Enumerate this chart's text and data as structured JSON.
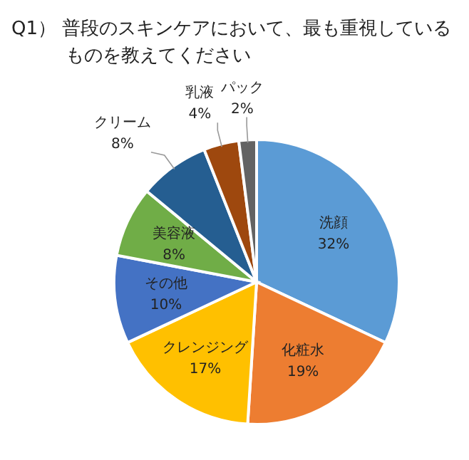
{
  "chart_data": {
    "type": "pie",
    "title": "Q1） 普段のスキンケアにおいて、最も重視しているものを教えてください",
    "categories": [
      "洗顔",
      "化粧水",
      "クレンジング",
      "その他",
      "美容液",
      "クリーム",
      "乳液",
      "パック"
    ],
    "values": [
      32,
      19,
      17,
      10,
      8,
      8,
      4,
      2
    ],
    "value_labels": [
      "32%",
      "19%",
      "17%",
      "10%",
      "8%",
      "8%",
      "4%",
      "2%"
    ],
    "colors": [
      "#5b9bd5",
      "#ed7d31",
      "#ffc000",
      "#4472c4",
      "#70ad47",
      "#255e91",
      "#9e480e",
      "#636363"
    ]
  }
}
